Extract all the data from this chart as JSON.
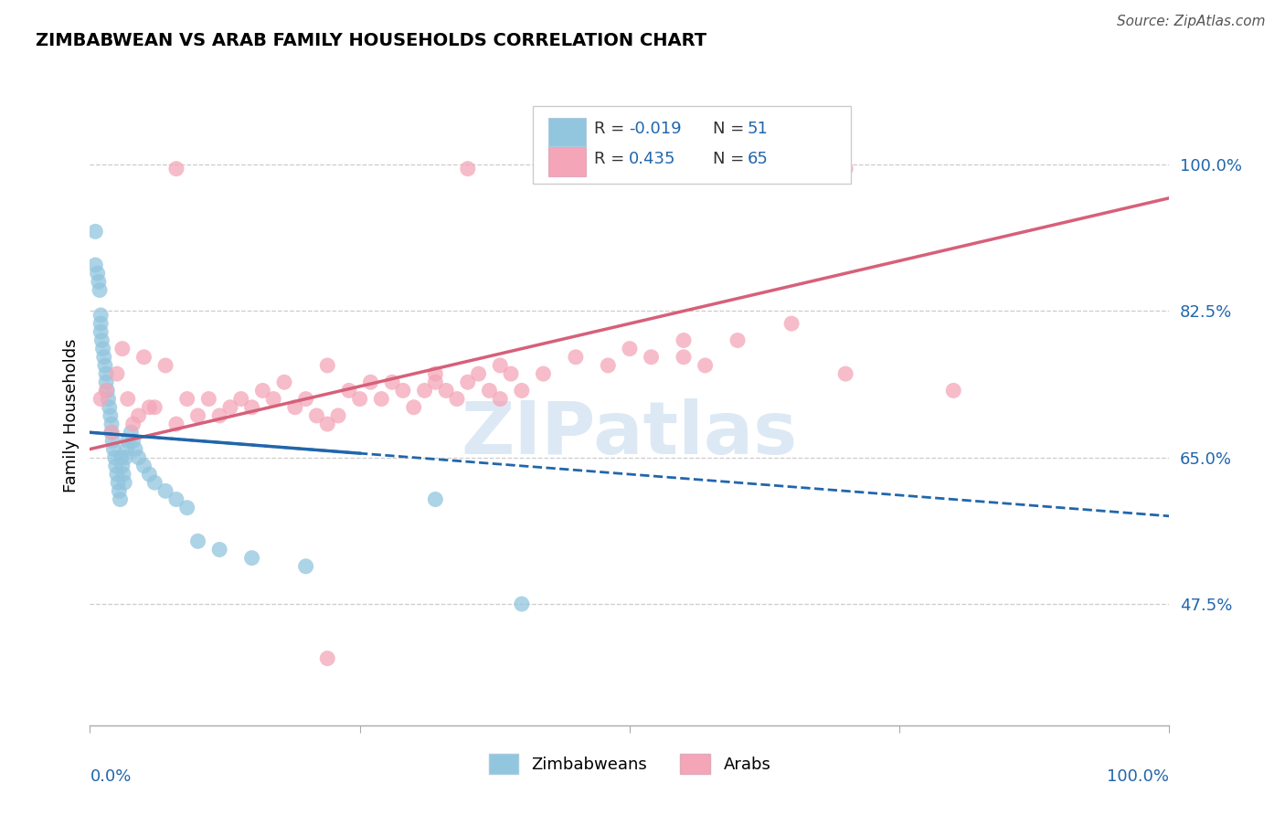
{
  "title": "ZIMBABWEAN VS ARAB FAMILY HOUSEHOLDS CORRELATION CHART",
  "source": "Source: ZipAtlas.com",
  "ylabel": "Family Households",
  "ytick_labels": [
    "47.5%",
    "65.0%",
    "82.5%",
    "100.0%"
  ],
  "ytick_values": [
    0.475,
    0.65,
    0.825,
    1.0
  ],
  "xlim": [
    0.0,
    1.0
  ],
  "ylim": [
    0.33,
    1.07
  ],
  "zim_color": "#92c5de",
  "arab_color": "#f4a6b8",
  "trend_zim_color": "#2166ac",
  "trend_arab_color": "#d6607a",
  "watermark_color": "#dce9f5",
  "r_zim": -0.019,
  "n_zim": 51,
  "r_arab": 0.435,
  "n_arab": 65,
  "legend_color": "#2166ac",
  "label_color": "#2166ac",
  "title_font": 14,
  "tick_font": 13,
  "source_font": 11
}
